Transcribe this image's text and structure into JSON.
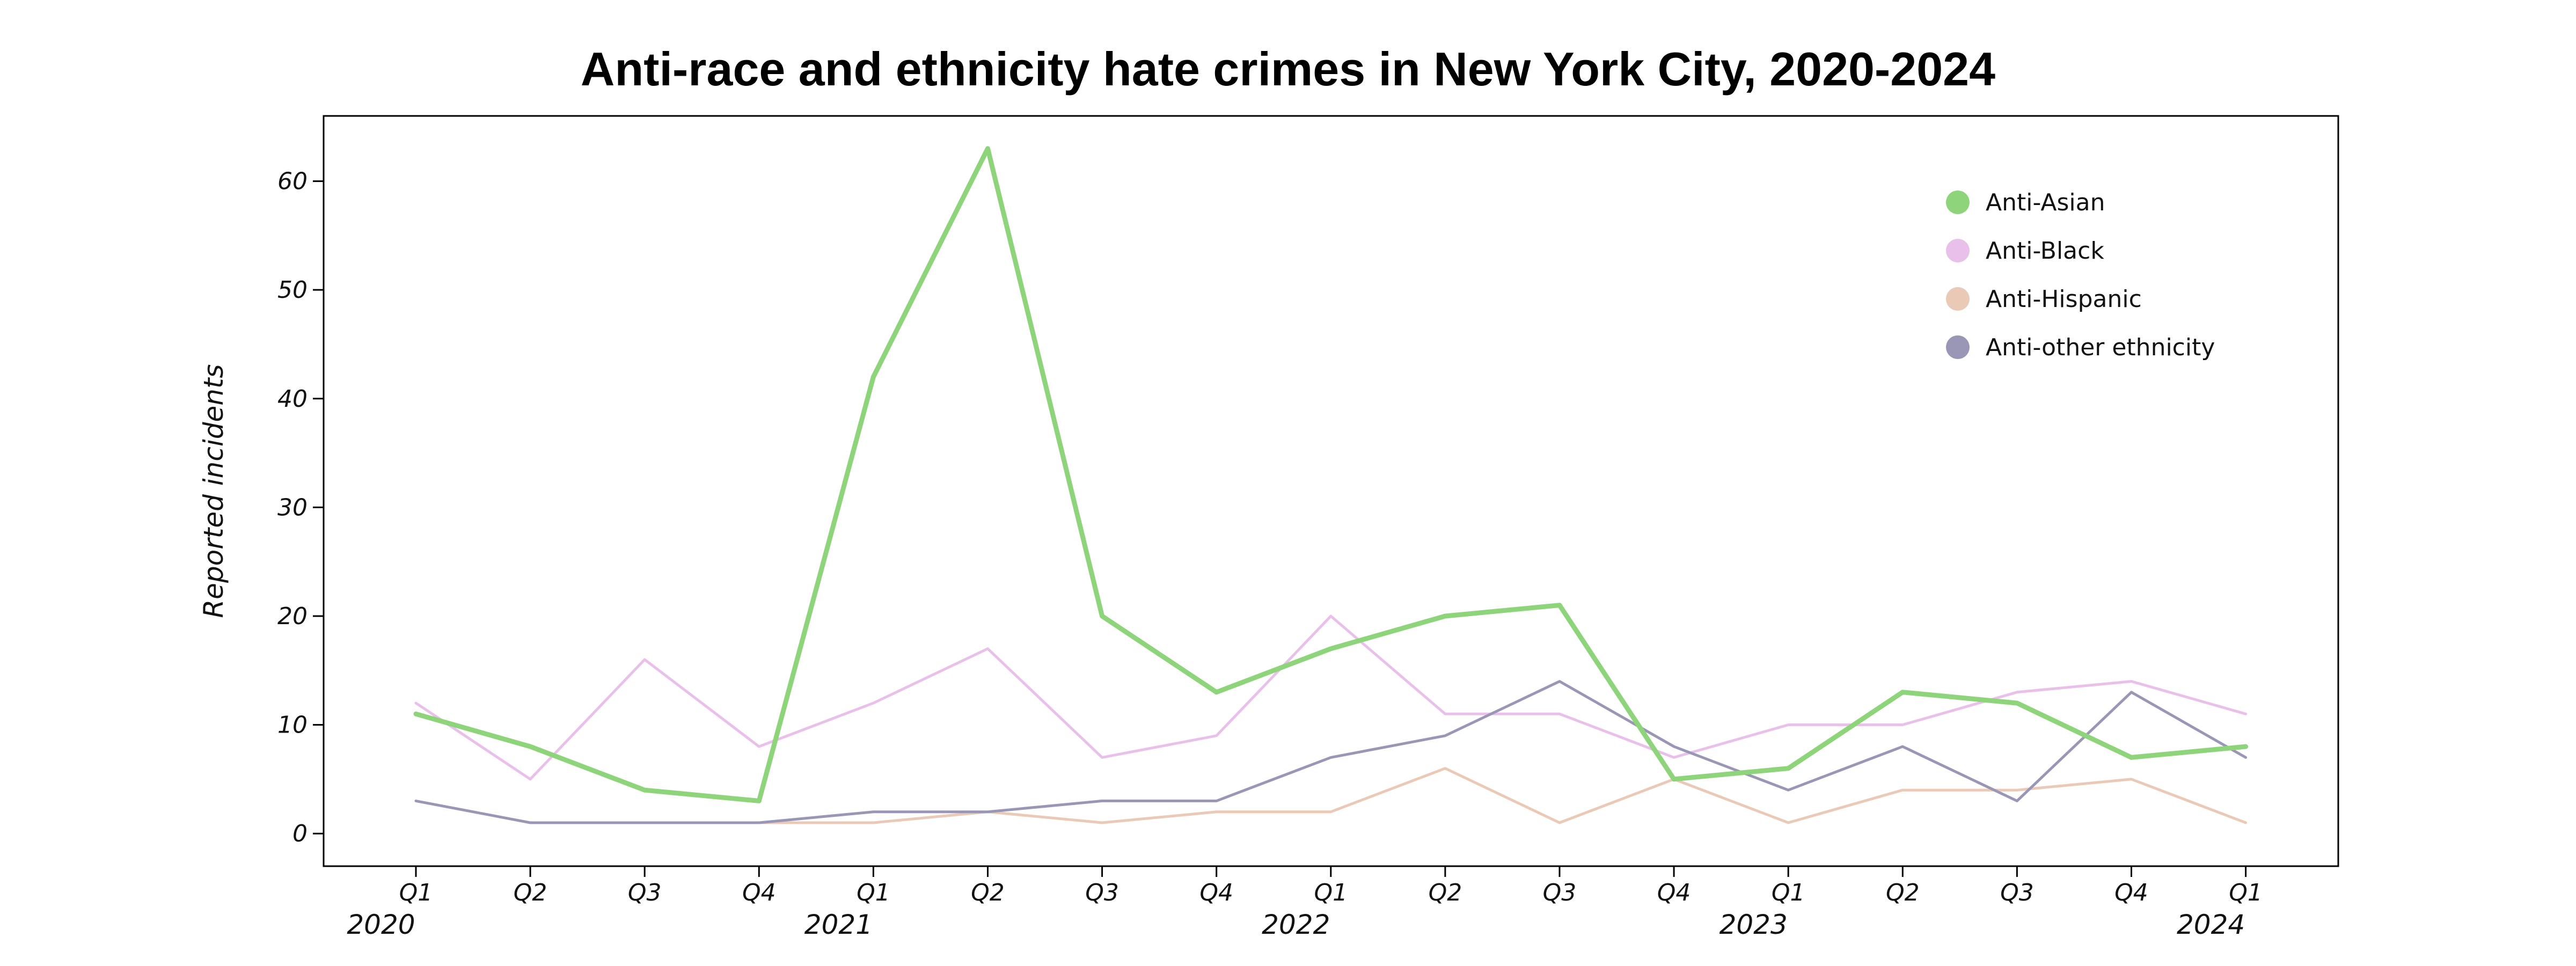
{
  "chart_data": {
    "type": "line",
    "title": "Anti-race and ethnicity hate crimes in New York City, 2020-2024",
    "xlabel": "",
    "ylabel": "Reported incidents",
    "ylim": [
      -3,
      66
    ],
    "yticks": [
      0,
      10,
      20,
      30,
      40,
      50,
      60
    ],
    "grid": false,
    "legend_position": "top-right",
    "categories": [
      "Q1",
      "Q2",
      "Q3",
      "Q4",
      "Q1",
      "Q2",
      "Q3",
      "Q4",
      "Q1",
      "Q2",
      "Q3",
      "Q4",
      "Q1",
      "Q2",
      "Q3",
      "Q4",
      "Q1"
    ],
    "year_labels": [
      {
        "index": 0,
        "label": "2020"
      },
      {
        "index": 4,
        "label": "2021"
      },
      {
        "index": 8,
        "label": "2022"
      },
      {
        "index": 12,
        "label": "2023"
      },
      {
        "index": 16,
        "label": "2024"
      }
    ],
    "series": [
      {
        "name": "Anti-Asian",
        "color": "#8ed47a",
        "emphasis": true,
        "values": [
          11,
          8,
          4,
          3,
          42,
          63,
          20,
          13,
          17,
          20,
          21,
          5,
          6,
          13,
          12,
          7,
          8
        ]
      },
      {
        "name": "Anti-Black",
        "color": "#e8c0ea",
        "emphasis": false,
        "values": [
          12,
          5,
          16,
          8,
          12,
          17,
          7,
          9,
          20,
          11,
          11,
          7,
          10,
          10,
          13,
          14,
          11
        ]
      },
      {
        "name": "Anti-Hispanic",
        "color": "#ebc9b7",
        "emphasis": false,
        "values": [
          null,
          null,
          null,
          1,
          1,
          2,
          1,
          2,
          2,
          6,
          1,
          5,
          1,
          4,
          4,
          5,
          1
        ]
      },
      {
        "name": "Anti-other ethnicity",
        "color": "#9996b6",
        "emphasis": false,
        "values": [
          3,
          1,
          1,
          1,
          2,
          2,
          3,
          3,
          7,
          9,
          14,
          8,
          4,
          8,
          3,
          13,
          7
        ]
      }
    ]
  }
}
